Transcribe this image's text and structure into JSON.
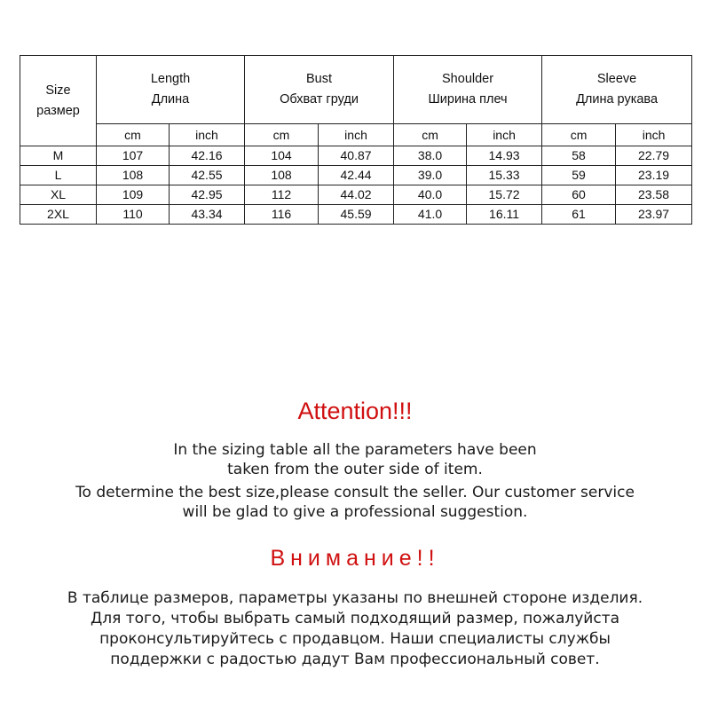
{
  "table": {
    "size_header": [
      "Size",
      "размер"
    ],
    "groups": [
      {
        "en": "Length",
        "ru": "Длина"
      },
      {
        "en": "Bust",
        "ru": "Обхват груди"
      },
      {
        "en": "Shoulder",
        "ru": "Ширина плеч"
      },
      {
        "en": "Sleeve",
        "ru": "Длина рукава"
      }
    ],
    "units": [
      "cm",
      "inch"
    ],
    "rows": [
      [
        "M",
        "107",
        "42.16",
        "104",
        "40.87",
        "38.0",
        "14.93",
        "58",
        "22.79"
      ],
      [
        "L",
        "108",
        "42.55",
        "108",
        "42.44",
        "39.0",
        "15.33",
        "59",
        "23.19"
      ],
      [
        "XL",
        "109",
        "42.95",
        "112",
        "44.02",
        "40.0",
        "15.72",
        "60",
        "23.58"
      ],
      [
        "2XL",
        "110",
        "43.34",
        "116",
        "45.59",
        "41.0",
        "16.11",
        "61",
        "23.97"
      ]
    ]
  },
  "notice_en": {
    "title": "Attention!!!",
    "lines": [
      "In the sizing table all the parameters have been",
      "taken from the outer side of item.",
      "To determine the best size,please consult the seller. Our customer service",
      "will be glad to give a professional suggestion."
    ]
  },
  "notice_ru": {
    "title": "Внимание!!",
    "lines": [
      "В таблице размеров, параметры указаны по внешней стороне изделия.",
      "Для того, чтобы выбрать самый подходящий размер, пожалуйста",
      "проконсультируйтесь с продавцом. Наши специалисты службы",
      "поддержки с радостью дадут Вам профессиональный совет."
    ]
  },
  "colors": {
    "accent_red": "#d01010",
    "text": "#111111",
    "border": "#222222"
  }
}
